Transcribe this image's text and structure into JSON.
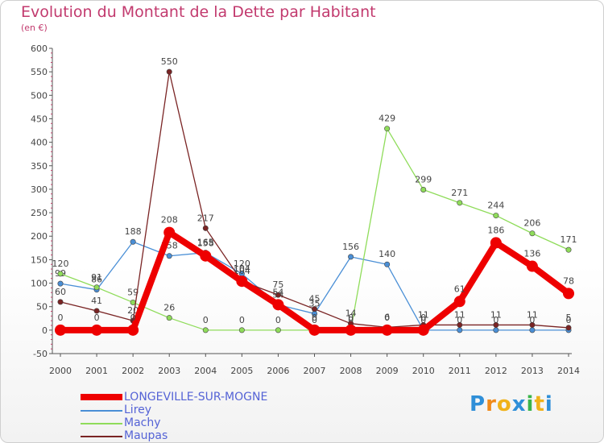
{
  "title": "Evolution du Montant de la Dette par Habitant",
  "subtitle": "(en €)",
  "logo": "Proxiti",
  "chart_data": {
    "type": "line",
    "x": [
      "2000",
      "2001",
      "2002",
      "2003",
      "2004",
      "2005",
      "2006",
      "2007",
      "2008",
      "2009",
      "2010",
      "2011",
      "2012",
      "2013",
      "2014"
    ],
    "ylim": [
      -50,
      600
    ],
    "yticks": [
      "-50",
      "0",
      "50",
      "100",
      "150",
      "200",
      "250",
      "300",
      "350",
      "400",
      "450",
      "500",
      "550",
      "600"
    ],
    "grid": false,
    "legend": "bottom-left",
    "series": [
      {
        "name": "Lirey",
        "color": "#4a8fd6",
        "values": [
          99,
          86,
          188,
          158,
          165,
          120,
          54,
          35,
          156,
          140,
          0,
          0,
          0,
          0,
          0
        ],
        "labels": [
          "99",
          "86",
          "188",
          "158",
          "165",
          "120",
          "54",
          "35",
          "156",
          "140",
          "0",
          "0",
          "0",
          "0",
          "0"
        ]
      },
      {
        "name": "Machy",
        "color": "#8fdc5a",
        "values": [
          120,
          91,
          59,
          26,
          0,
          0,
          0,
          0,
          0,
          429,
          299,
          271,
          244,
          206,
          171
        ],
        "labels": [
          "120",
          "91",
          "59",
          "26",
          "0",
          "0",
          "0",
          "0",
          "0",
          "429",
          "299",
          "271",
          "244",
          "206",
          "171"
        ]
      },
      {
        "name": "Maupas",
        "color": "#7a2424",
        "values": [
          60,
          41,
          20,
          550,
          217,
          104,
          75,
          45,
          14,
          6,
          11,
          11,
          11,
          11,
          5
        ],
        "labels": [
          "60",
          "41",
          "20",
          "550",
          "217",
          "104",
          "75",
          "45",
          "14",
          "6",
          "11",
          "11",
          "11",
          "11",
          "5"
        ]
      },
      {
        "name": "LONGEVILLE-SUR-MOGNE",
        "color": "#ee0000",
        "values": [
          0,
          0,
          0,
          208,
          158,
          104,
          54,
          0,
          0,
          0,
          0,
          61,
          186,
          136,
          78
        ],
        "labels": [
          "0",
          "0",
          "0",
          "208",
          "158",
          "104",
          "54",
          "0",
          "0",
          "0",
          "0",
          "61",
          "186",
          "136",
          "78"
        ]
      }
    ],
    "legend_order": [
      "LONGEVILLE-SUR-MOGNE",
      "Lirey",
      "Machy",
      "Maupas"
    ]
  }
}
